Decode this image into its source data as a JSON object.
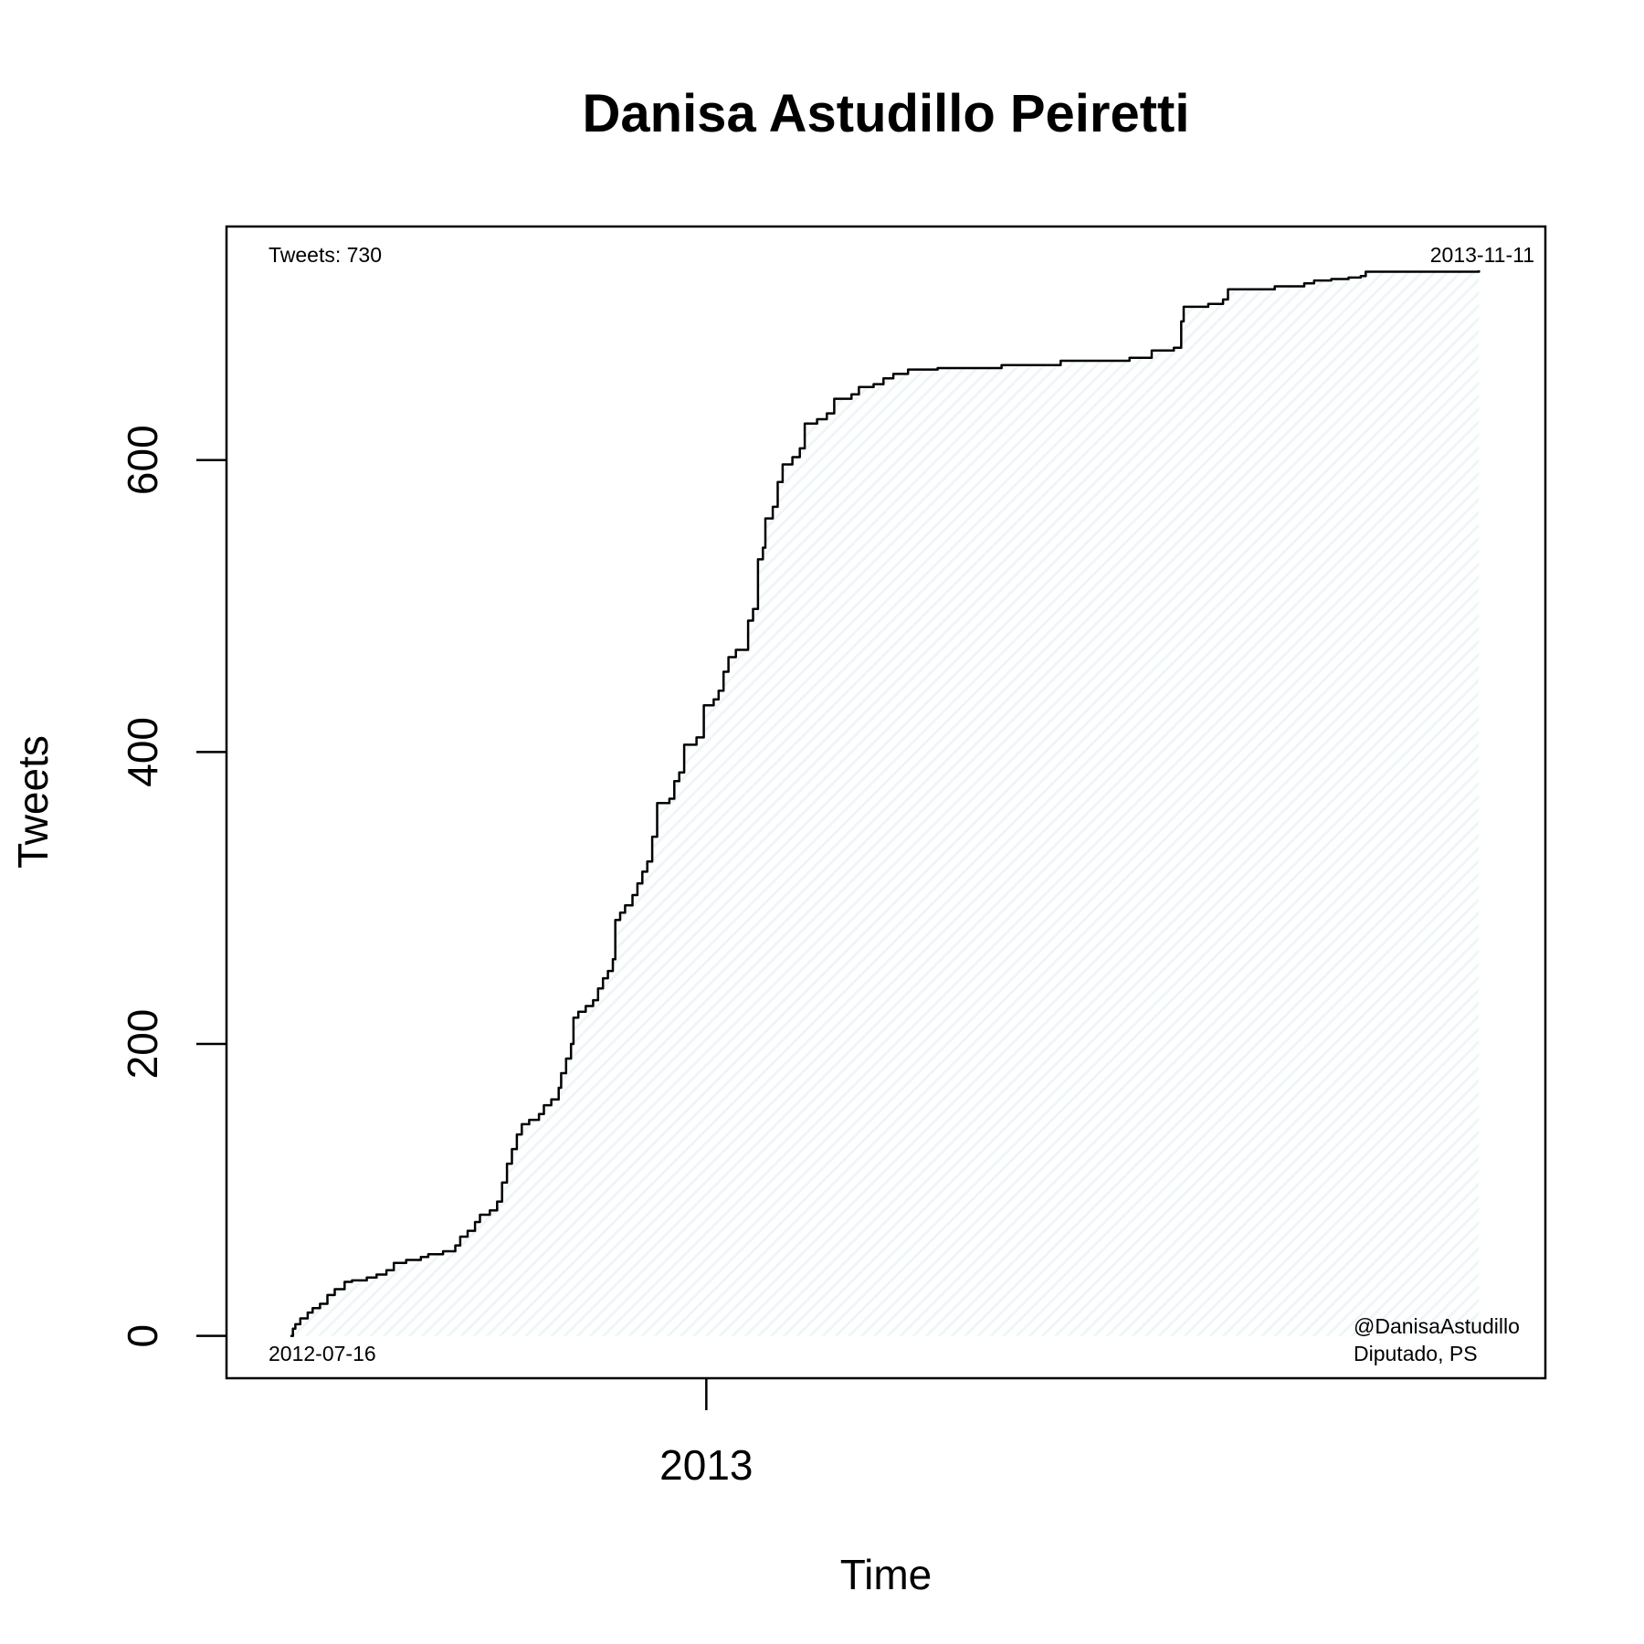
{
  "chart_data": {
    "type": "area",
    "title": "Danisa Astudillo Peiretti",
    "xlabel": "Time",
    "ylabel": "Tweets",
    "x_ticks": [
      {
        "date": "2013-01-01",
        "label": "2013"
      }
    ],
    "y_ticks": [
      0,
      200,
      400,
      600
    ],
    "xlim": [
      "2012-06-20",
      "2013-12-08"
    ],
    "ylim": [
      -29,
      760
    ],
    "annotations": {
      "tweets_total": "Tweets: 730",
      "start_date": "2012-07-16",
      "end_date": "2013-11-11",
      "handle": "@DanisaAstudillo",
      "role": "Diputado, PS"
    },
    "line_color": "#000000",
    "fill_color": "#eef6f8",
    "series": [
      {
        "values": [
          [
            "2012-07-16",
            0
          ],
          [
            "2012-07-17",
            5
          ],
          [
            "2012-07-18",
            8
          ],
          [
            "2012-07-20",
            12
          ],
          [
            "2012-07-23",
            16
          ],
          [
            "2012-07-25",
            19
          ],
          [
            "2012-07-28",
            22
          ],
          [
            "2012-07-31",
            28
          ],
          [
            "2012-08-03",
            32
          ],
          [
            "2012-08-07",
            37
          ],
          [
            "2012-08-10",
            38
          ],
          [
            "2012-08-16",
            40
          ],
          [
            "2012-08-20",
            42
          ],
          [
            "2012-08-24",
            45
          ],
          [
            "2012-08-27",
            50
          ],
          [
            "2012-09-01",
            52
          ],
          [
            "2012-09-07",
            54
          ],
          [
            "2012-09-10",
            56
          ],
          [
            "2012-09-16",
            58
          ],
          [
            "2012-09-21",
            62
          ],
          [
            "2012-09-23",
            68
          ],
          [
            "2012-09-26",
            72
          ],
          [
            "2012-09-29",
            78
          ],
          [
            "2012-10-01",
            83
          ],
          [
            "2012-10-05",
            86
          ],
          [
            "2012-10-08",
            92
          ],
          [
            "2012-10-10",
            105
          ],
          [
            "2012-10-12",
            118
          ],
          [
            "2012-10-14",
            128
          ],
          [
            "2012-10-16",
            138
          ],
          [
            "2012-10-18",
            145
          ],
          [
            "2012-10-21",
            148
          ],
          [
            "2012-10-25",
            152
          ],
          [
            "2012-10-27",
            158
          ],
          [
            "2012-10-30",
            162
          ],
          [
            "2012-11-02",
            170
          ],
          [
            "2012-11-03",
            180
          ],
          [
            "2012-11-05",
            190
          ],
          [
            "2012-11-07",
            200
          ],
          [
            "2012-11-08",
            218
          ],
          [
            "2012-11-10",
            222
          ],
          [
            "2012-11-13",
            226
          ],
          [
            "2012-11-16",
            230
          ],
          [
            "2012-11-18",
            238
          ],
          [
            "2012-11-20",
            245
          ],
          [
            "2012-11-22",
            250
          ],
          [
            "2012-11-24",
            258
          ],
          [
            "2012-11-25",
            285
          ],
          [
            "2012-11-27",
            290
          ],
          [
            "2012-11-29",
            295
          ],
          [
            "2012-12-02",
            302
          ],
          [
            "2012-12-04",
            310
          ],
          [
            "2012-12-06",
            318
          ],
          [
            "2012-12-08",
            325
          ],
          [
            "2012-12-10",
            342
          ],
          [
            "2012-12-12",
            365
          ],
          [
            "2012-12-17",
            368
          ],
          [
            "2012-12-19",
            380
          ],
          [
            "2012-12-21",
            386
          ],
          [
            "2012-12-23",
            405
          ],
          [
            "2012-12-28",
            410
          ],
          [
            "2012-12-31",
            432
          ],
          [
            "2013-01-04",
            436
          ],
          [
            "2013-01-06",
            442
          ],
          [
            "2013-01-08",
            455
          ],
          [
            "2013-01-10",
            465
          ],
          [
            "2013-01-13",
            470
          ],
          [
            "2013-01-18",
            490
          ],
          [
            "2013-01-20",
            498
          ],
          [
            "2013-01-22",
            532
          ],
          [
            "2013-01-24",
            540
          ],
          [
            "2013-01-25",
            560
          ],
          [
            "2013-01-28",
            568
          ],
          [
            "2013-01-30",
            585
          ],
          [
            "2013-02-01",
            597
          ],
          [
            "2013-02-05",
            602
          ],
          [
            "2013-02-08",
            608
          ],
          [
            "2013-02-10",
            625
          ],
          [
            "2013-02-15",
            628
          ],
          [
            "2013-02-19",
            632
          ],
          [
            "2013-02-22",
            642
          ],
          [
            "2013-03-01",
            645
          ],
          [
            "2013-03-04",
            650
          ],
          [
            "2013-03-10",
            652
          ],
          [
            "2013-03-14",
            656
          ],
          [
            "2013-03-18",
            659
          ],
          [
            "2013-03-24",
            662
          ],
          [
            "2013-04-05",
            663
          ],
          [
            "2013-05-01",
            665
          ],
          [
            "2013-05-25",
            668
          ],
          [
            "2013-06-22",
            670
          ],
          [
            "2013-07-01",
            675
          ],
          [
            "2013-07-10",
            677
          ],
          [
            "2013-07-13",
            695
          ],
          [
            "2013-07-14",
            705
          ],
          [
            "2013-07-24",
            707
          ],
          [
            "2013-07-30",
            710
          ],
          [
            "2013-08-01",
            717
          ],
          [
            "2013-08-20",
            719
          ],
          [
            "2013-09-01",
            721
          ],
          [
            "2013-09-05",
            723
          ],
          [
            "2013-09-12",
            724
          ],
          [
            "2013-09-19",
            725
          ],
          [
            "2013-09-24",
            726
          ],
          [
            "2013-09-26",
            729
          ],
          [
            "2013-11-11",
            730
          ]
        ]
      }
    ]
  }
}
